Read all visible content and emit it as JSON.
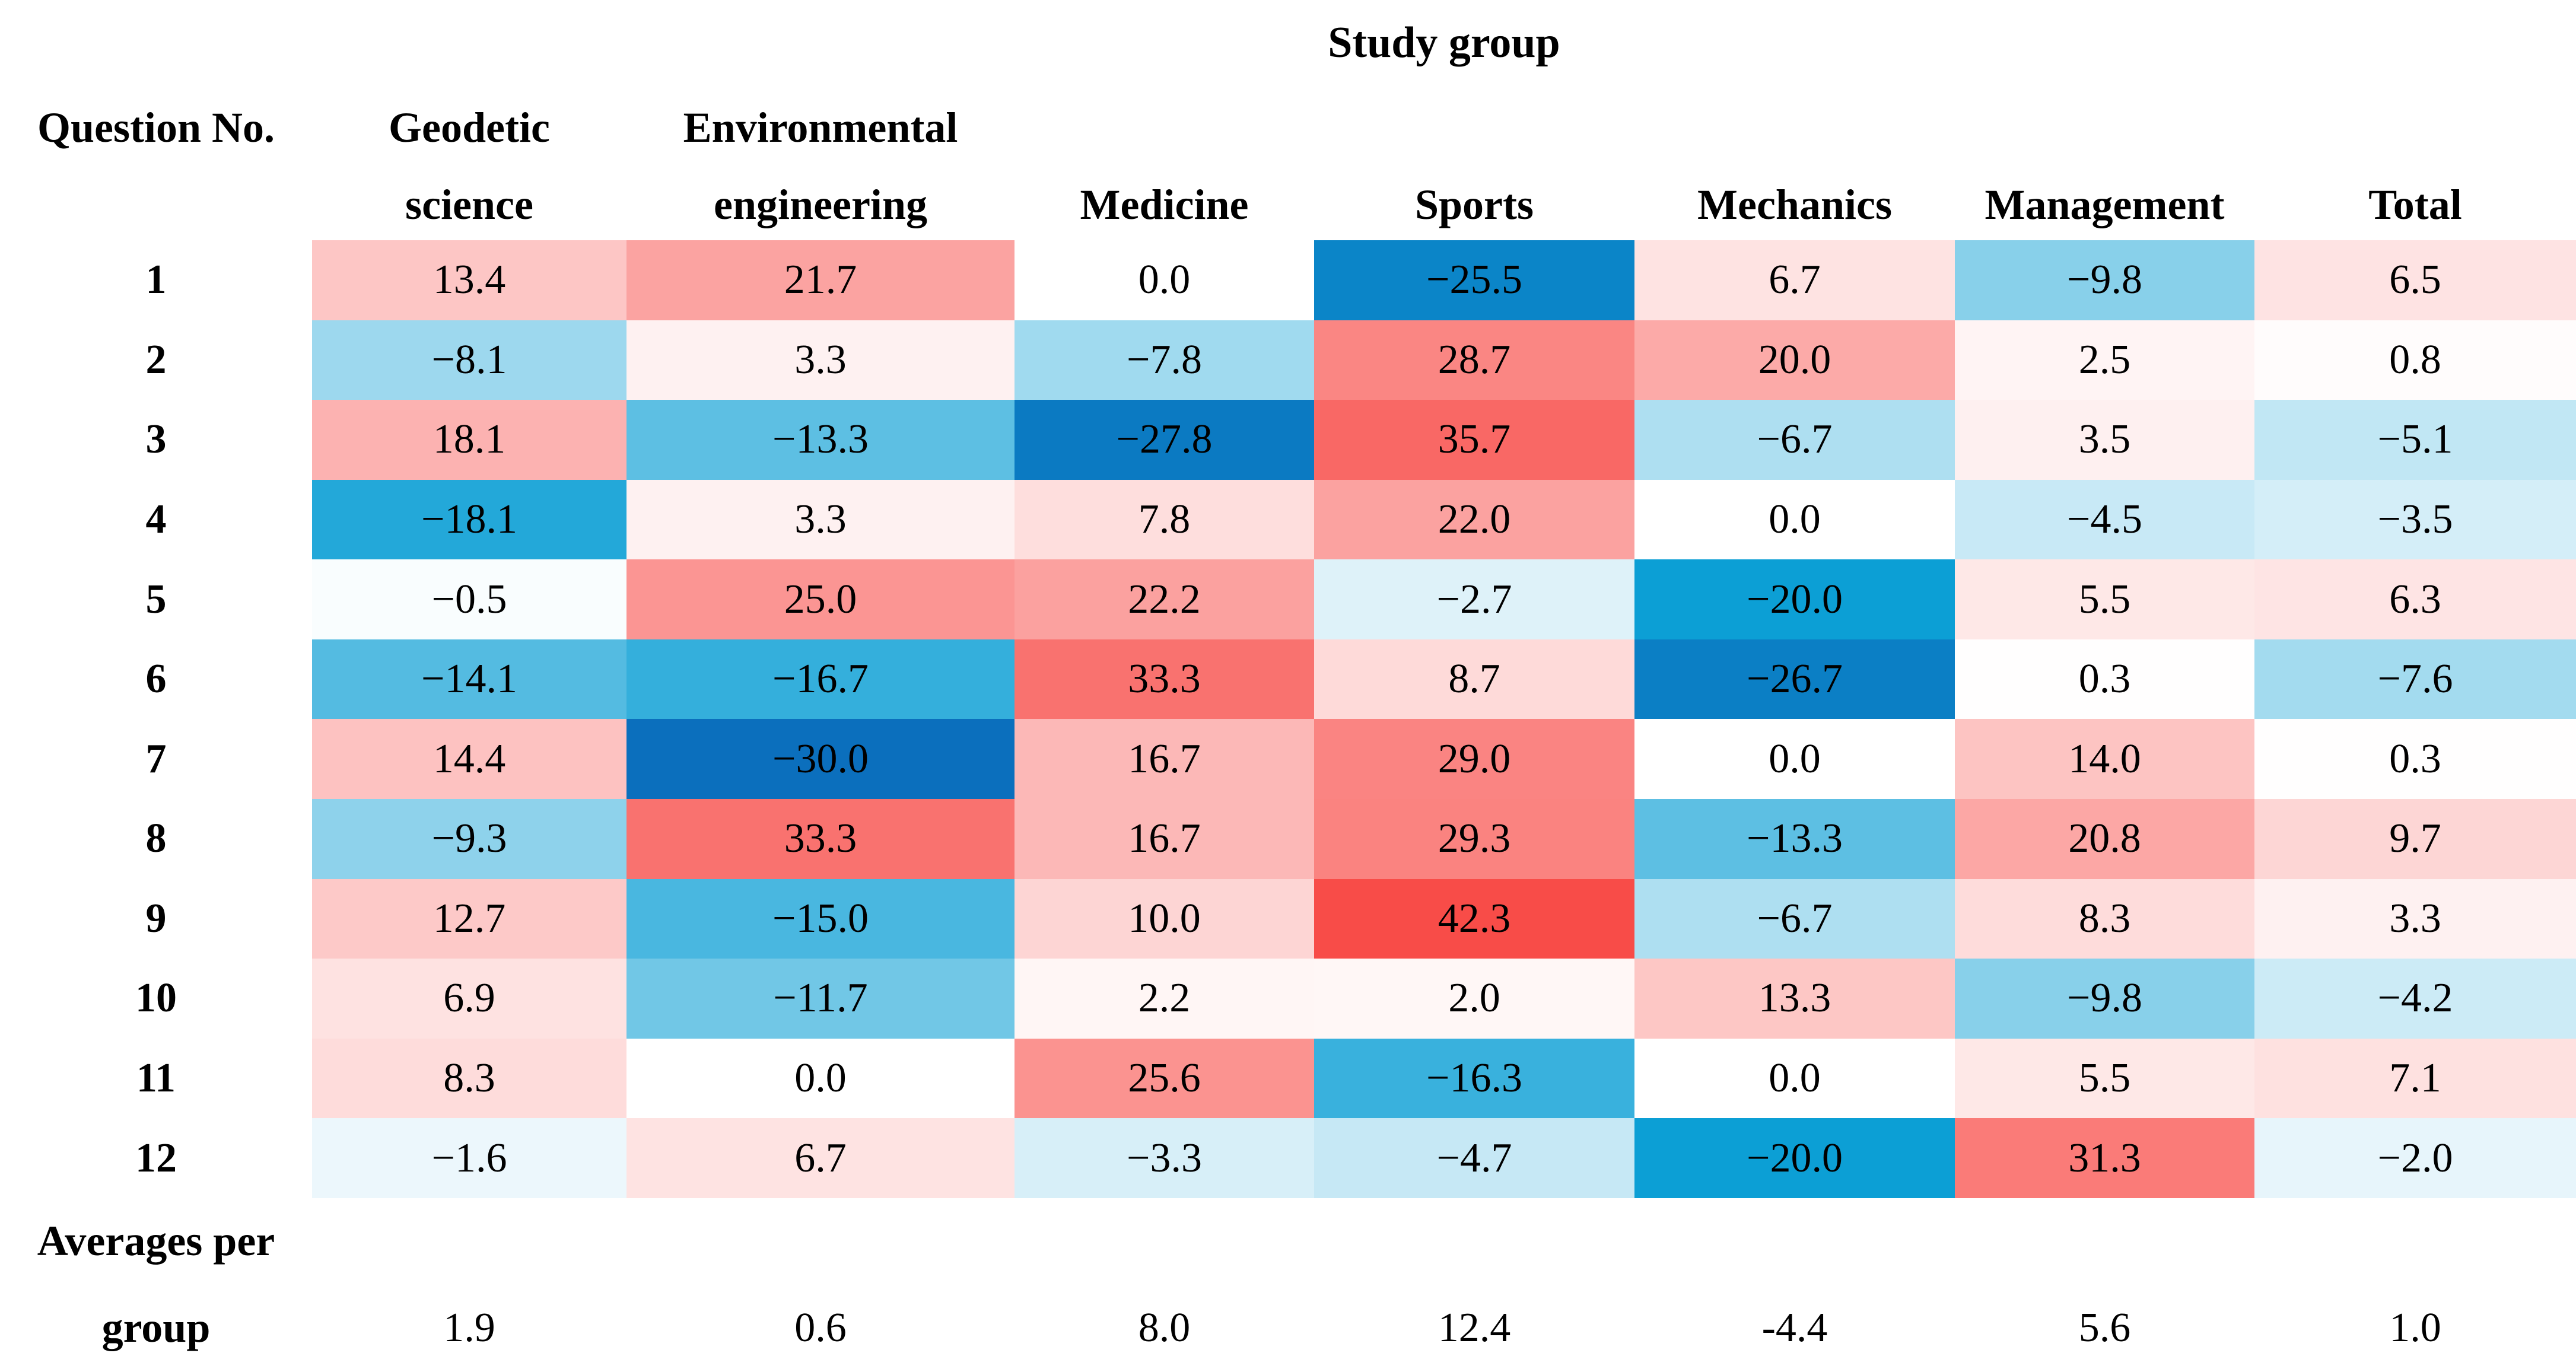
{
  "chart_data": {
    "type": "heatmap",
    "title": "Study group",
    "row_label_header": "Question No.",
    "columns": [
      "Geodetic science",
      "Environmental engineering",
      "Medicine",
      "Sports",
      "Mechanics",
      "Management",
      "Total"
    ],
    "two_line_column_count": 2,
    "rows": [
      {
        "label": "1",
        "values": [
          13.4,
          21.7,
          0.0,
          -25.5,
          6.7,
          -9.8,
          6.5
        ]
      },
      {
        "label": "2",
        "values": [
          -8.1,
          3.3,
          -7.8,
          28.7,
          20.0,
          2.5,
          0.8
        ]
      },
      {
        "label": "3",
        "values": [
          18.1,
          -13.3,
          -27.8,
          35.7,
          -6.7,
          3.5,
          -5.1
        ]
      },
      {
        "label": "4",
        "values": [
          -18.1,
          3.3,
          7.8,
          22.0,
          0.0,
          -4.5,
          -3.5
        ]
      },
      {
        "label": "5",
        "values": [
          -0.5,
          25.0,
          22.2,
          -2.7,
          -20.0,
          5.5,
          6.3
        ]
      },
      {
        "label": "6",
        "values": [
          -14.1,
          -16.7,
          33.3,
          8.7,
          -26.7,
          0.3,
          -7.6
        ]
      },
      {
        "label": "7",
        "values": [
          14.4,
          -30.0,
          16.7,
          29.0,
          0.0,
          14.0,
          0.3
        ]
      },
      {
        "label": "8",
        "values": [
          -9.3,
          33.3,
          16.7,
          29.3,
          -13.3,
          20.8,
          9.7
        ]
      },
      {
        "label": "9",
        "values": [
          12.7,
          -15.0,
          10.0,
          42.3,
          -6.7,
          8.3,
          3.3
        ]
      },
      {
        "label": "10",
        "values": [
          6.9,
          -11.7,
          2.2,
          2.0,
          13.3,
          -9.8,
          -4.2
        ]
      },
      {
        "label": "11",
        "values": [
          8.3,
          0.0,
          25.6,
          -16.3,
          0.0,
          5.5,
          7.1
        ]
      },
      {
        "label": "12",
        "values": [
          -1.6,
          6.7,
          -3.3,
          -4.7,
          -20.0,
          31.3,
          -2.0
        ]
      }
    ],
    "averages_label_lines": [
      "Averages per",
      "group"
    ],
    "averages": [
      "1.9",
      "0.6",
      "8.0",
      "12.4",
      "-4.4",
      "5.6",
      "1.0"
    ],
    "value_text_color": "#000000",
    "color_scale": {
      "zero": "#ffffff",
      "positive_end": "#f84c48",
      "positive_limit": 42.3,
      "negative_mid": "#0c9fd5",
      "negative_mid_at": -20,
      "negative_end": "#0b6fbd",
      "negative_limit": -30
    }
  }
}
